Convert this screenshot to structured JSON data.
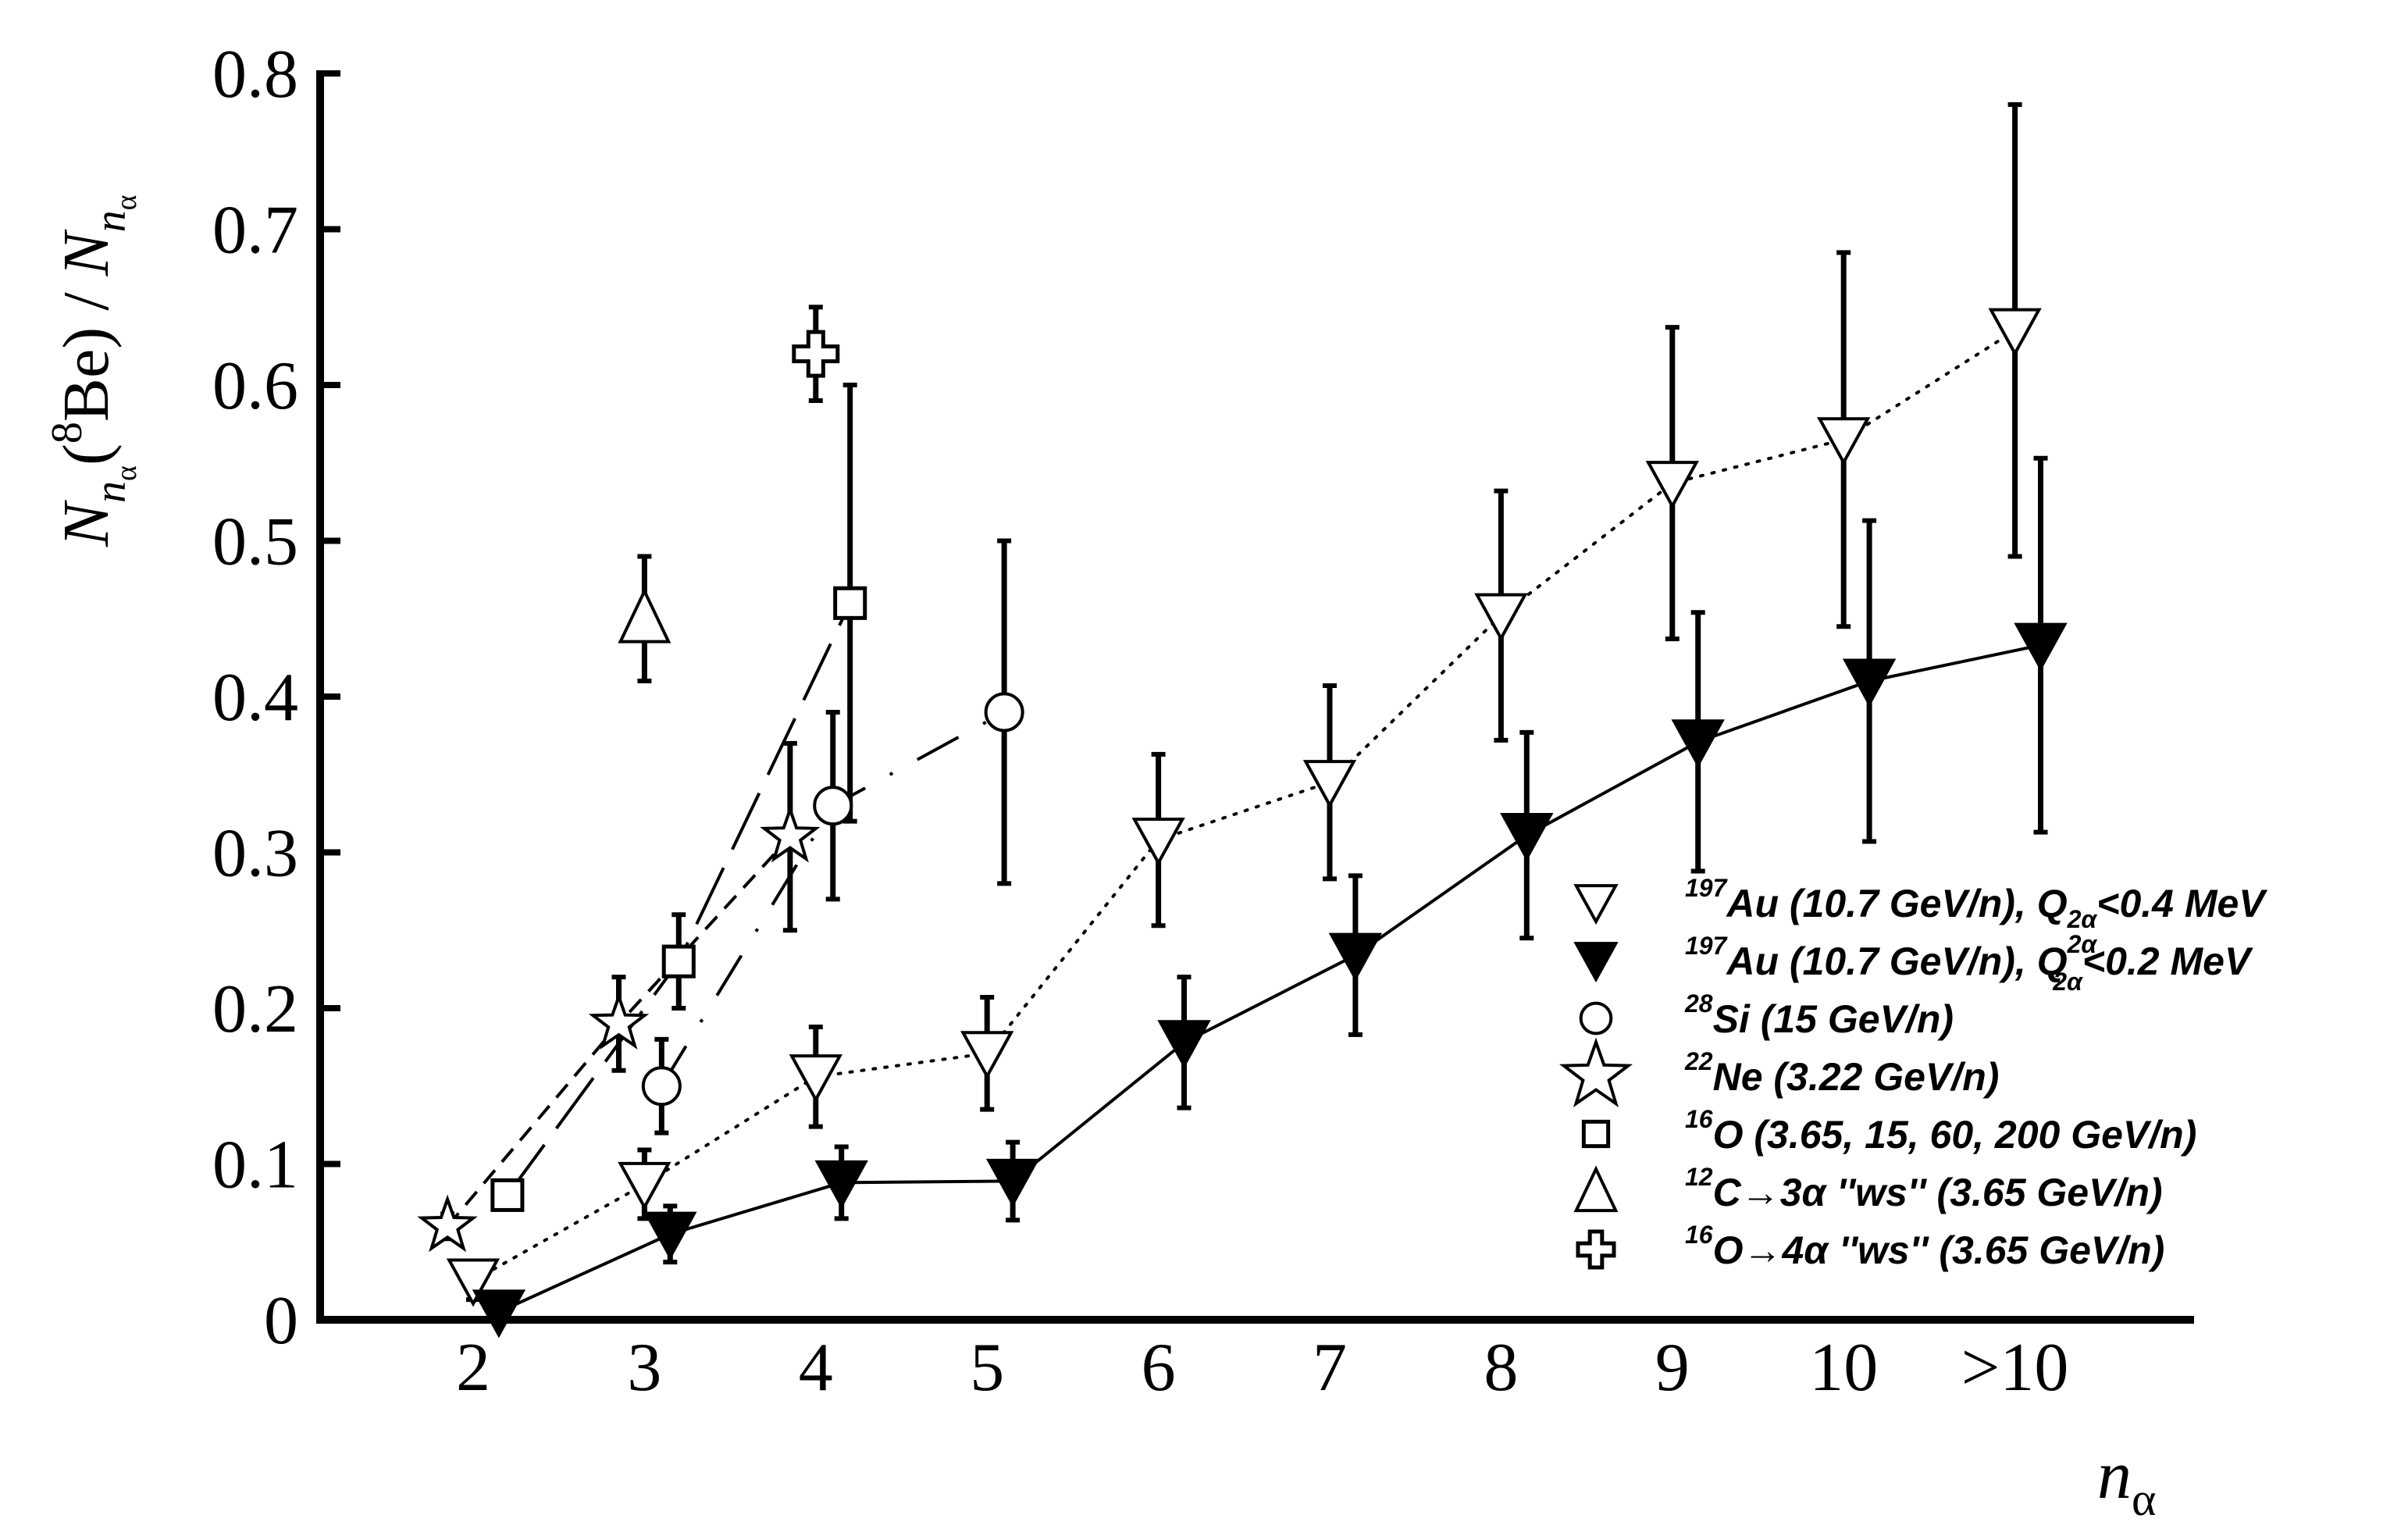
{
  "chart_data": {
    "type": "scatter",
    "title": "",
    "xlabel": "n",
    "xlabel_sub": "α",
    "ylabel": {
      "N1": "N",
      "sub1": "n",
      "subsub1": "α",
      "paren_open": "(",
      "iso_sup": "8",
      "iso": "Be",
      "paren_close": ")",
      "slash": " / ",
      "N2": "N",
      "sub2": "n",
      "subsub2": "α"
    },
    "ylim": [
      0,
      0.8
    ],
    "xlim": [
      1.1,
      11.9
    ],
    "yticks": [
      {
        "value": 0,
        "label": "0"
      },
      {
        "value": 0.1,
        "label": "0.1"
      },
      {
        "value": 0.2,
        "label": "0.2"
      },
      {
        "value": 0.3,
        "label": "0.3"
      },
      {
        "value": 0.4,
        "label": "0.4"
      },
      {
        "value": 0.5,
        "label": "0.5"
      },
      {
        "value": 0.6,
        "label": "0.6"
      },
      {
        "value": 0.7,
        "label": "0.7"
      },
      {
        "value": 0.8,
        "label": "0.8"
      }
    ],
    "xticks": [
      {
        "value": 2,
        "label": "2"
      },
      {
        "value": 3,
        "label": "3"
      },
      {
        "value": 4,
        "label": "4"
      },
      {
        "value": 5,
        "label": "5"
      },
      {
        "value": 6,
        "label": "6"
      },
      {
        "value": 7,
        "label": "7"
      },
      {
        "value": 8,
        "label": "8"
      },
      {
        "value": 9,
        "label": "9"
      },
      {
        "value": 10,
        "label": "10"
      },
      {
        "value": 11,
        "label": ">10"
      }
    ],
    "grid": false,
    "legend_position": "bottom-right",
    "series": [
      {
        "name": "¹⁹⁷Au (10.7 GeV/n), Q2α<0.4 MeV",
        "marker": "triangle-down-open",
        "line": "dotted",
        "points": [
          {
            "x": 2.0,
            "y": 0.025,
            "err_lo": 0.012,
            "err_hi": 0.012
          },
          {
            "x": 3.0,
            "y": 0.087,
            "err_lo": 0.022,
            "err_hi": 0.022
          },
          {
            "x": 4.0,
            "y": 0.156,
            "err_lo": 0.032,
            "err_hi": 0.032
          },
          {
            "x": 5.0,
            "y": 0.171,
            "err_lo": 0.036,
            "err_hi": 0.036
          },
          {
            "x": 6.0,
            "y": 0.308,
            "err_lo": 0.055,
            "err_hi": 0.055
          },
          {
            "x": 7.0,
            "y": 0.345,
            "err_lo": 0.062,
            "err_hi": 0.062
          },
          {
            "x": 8.0,
            "y": 0.452,
            "err_lo": 0.08,
            "err_hi": 0.08
          },
          {
            "x": 9.0,
            "y": 0.537,
            "err_lo": 0.1,
            "err_hi": 0.1
          },
          {
            "x": 10.0,
            "y": 0.565,
            "err_lo": 0.12,
            "err_hi": 0.12
          },
          {
            "x": 11.0,
            "y": 0.635,
            "err_lo": 0.145,
            "err_hi": 0.145
          }
        ]
      },
      {
        "name": "¹⁹⁷Au (10.7 GeV/n), Q2α<0.2 MeV",
        "marker": "triangle-down-filled",
        "line": "solid",
        "points": [
          {
            "x": 2.15,
            "y": 0.005,
            "err_lo": 0.004,
            "err_hi": 0.004
          },
          {
            "x": 3.15,
            "y": 0.055,
            "err_lo": 0.018,
            "err_hi": 0.018
          },
          {
            "x": 4.15,
            "y": 0.088,
            "err_lo": 0.023,
            "err_hi": 0.023
          },
          {
            "x": 5.15,
            "y": 0.089,
            "err_lo": 0.025,
            "err_hi": 0.025
          },
          {
            "x": 6.15,
            "y": 0.178,
            "err_lo": 0.042,
            "err_hi": 0.042
          },
          {
            "x": 7.15,
            "y": 0.234,
            "err_lo": 0.051,
            "err_hi": 0.051
          },
          {
            "x": 8.15,
            "y": 0.311,
            "err_lo": 0.066,
            "err_hi": 0.066
          },
          {
            "x": 9.15,
            "y": 0.371,
            "err_lo": 0.083,
            "err_hi": 0.083
          },
          {
            "x": 10.15,
            "y": 0.41,
            "err_lo": 0.103,
            "err_hi": 0.103
          },
          {
            "x": 11.15,
            "y": 0.433,
            "err_lo": 0.12,
            "err_hi": 0.12
          }
        ]
      },
      {
        "name": "²⁸Si (15 GeV/n)",
        "marker": "circle-open",
        "line": "dash-dot",
        "points": [
          {
            "x": 3.1,
            "y": 0.15,
            "err_lo": 0.03,
            "err_hi": 0.03
          },
          {
            "x": 4.1,
            "y": 0.33,
            "err_lo": 0.06,
            "err_hi": 0.06
          },
          {
            "x": 5.1,
            "y": 0.39,
            "err_lo": 0.11,
            "err_hi": 0.11
          }
        ]
      },
      {
        "name": "²²Ne (3.22 GeV/n)",
        "marker": "star-open",
        "line": "dashed",
        "points": [
          {
            "x": 1.85,
            "y": 0.06,
            "err_lo": 0.008,
            "err_hi": 0.008
          },
          {
            "x": 2.85,
            "y": 0.19,
            "err_lo": 0.03,
            "err_hi": 0.03
          },
          {
            "x": 3.85,
            "y": 0.31,
            "err_lo": 0.06,
            "err_hi": 0.06
          }
        ]
      },
      {
        "name": "¹⁶O (3.65, 15, 60, 200 GeV/n)",
        "marker": "square-open",
        "line": "long-dash",
        "points": [
          {
            "x": 2.2,
            "y": 0.08,
            "err_lo": 0.008,
            "err_hi": 0.008
          },
          {
            "x": 3.2,
            "y": 0.23,
            "err_lo": 0.03,
            "err_hi": 0.03
          },
          {
            "x": 4.2,
            "y": 0.46,
            "err_lo": 0.14,
            "err_hi": 0.14
          }
        ]
      },
      {
        "name": "¹²C→3α ''ws'' (3.65 GeV/n)",
        "marker": "triangle-up-open",
        "line": "none",
        "points": [
          {
            "x": 3.0,
            "y": 0.45,
            "err_lo": 0.04,
            "err_hi": 0.04
          }
        ]
      },
      {
        "name": "¹⁶O→4α ''ws'' (3.65 GeV/n)",
        "marker": "cross-open",
        "line": "none",
        "points": [
          {
            "x": 4.0,
            "y": 0.62,
            "err_lo": 0.03,
            "err_hi": 0.03
          }
        ]
      }
    ],
    "legend": [
      {
        "sup": "197",
        "label": "Au (10.7 GeV/n), Q",
        "q_sub": "2α",
        "tail": "<0.4 MeV",
        "q_sup": ""
      },
      {
        "sup": "197",
        "label": "Au (10.7 GeV/n), Q",
        "q_sub": "2α",
        "tail": "<0.2 MeV",
        "q_sup": "2α"
      },
      {
        "sup": "28",
        "label": "Si (15 GeV/n)",
        "q_sub": "",
        "tail": "",
        "q_sup": ""
      },
      {
        "sup": "22",
        "label": "Ne (3.22 GeV/n)",
        "q_sub": "",
        "tail": "",
        "q_sup": ""
      },
      {
        "sup": "16",
        "label": "O (3.65, 15, 60, 200 GeV/n)",
        "q_sub": "",
        "tail": "",
        "q_sup": ""
      },
      {
        "sup": "12",
        "label": "C→3α ''ws'' (3.65 GeV/n)",
        "q_sub": "",
        "tail": "",
        "q_sup": ""
      },
      {
        "sup": "16",
        "label": "O→4α ''ws'' (3.65 GeV/n)",
        "q_sub": "",
        "tail": "",
        "q_sup": ""
      }
    ]
  }
}
